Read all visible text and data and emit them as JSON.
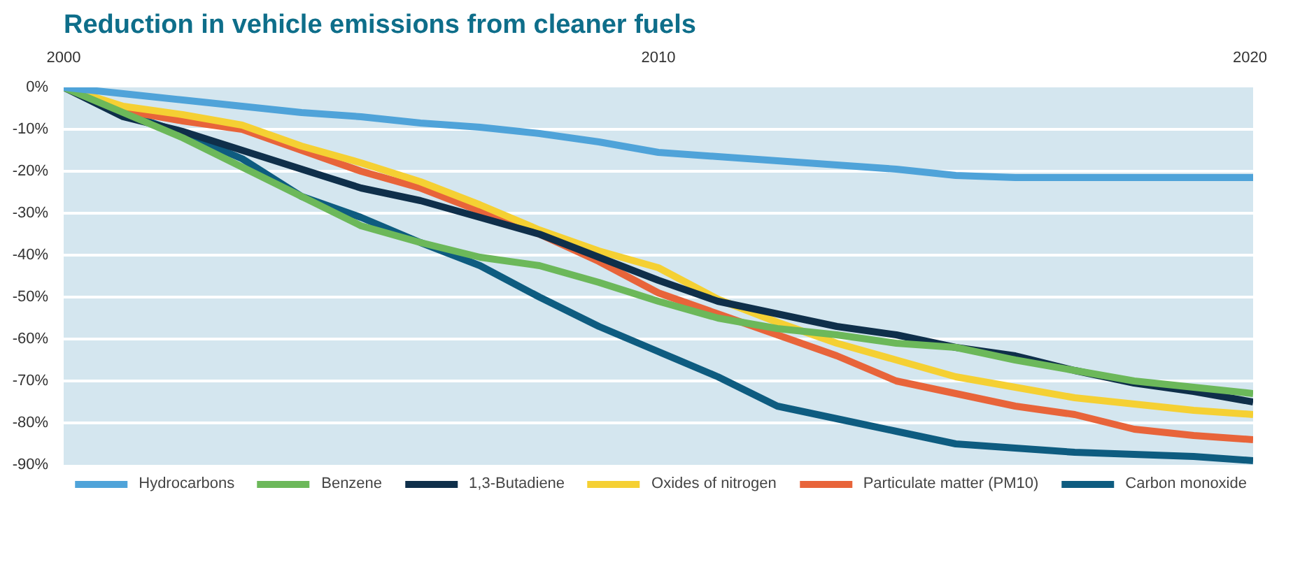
{
  "chart_data": {
    "type": "line",
    "title": "Reduction in vehicle emissions from cleaner fuels",
    "x": [
      2000,
      2001,
      2002,
      2003,
      2004,
      2005,
      2006,
      2007,
      2008,
      2009,
      2010,
      2011,
      2012,
      2013,
      2014,
      2015,
      2016,
      2017,
      2018,
      2019,
      2020
    ],
    "series": [
      {
        "name": "Hydrocarbons",
        "color": "#4fa3d9",
        "values": [
          0,
          -1.5,
          -3,
          -4.5,
          -6,
          -7,
          -8.5,
          -9.5,
          -11,
          -13,
          -15.5,
          -16.5,
          -17.5,
          -18.5,
          -19.5,
          -21,
          -21.5,
          -21.5,
          -21.5,
          -21.5,
          -21.5
        ]
      },
      {
        "name": "Benzene",
        "color": "#6cb85a",
        "values": [
          0,
          -6,
          -12,
          -19,
          -26,
          -33,
          -37,
          -40.5,
          -42.5,
          -46.5,
          -51,
          -55,
          -57.5,
          -59,
          -61,
          -62,
          -65,
          -67.5,
          -70,
          -71.5,
          -73
        ]
      },
      {
        "name": "1,3-Butadiene",
        "color": "#0f2f4a",
        "values": [
          0,
          -7,
          -10.5,
          -15,
          -19.5,
          -24,
          -27,
          -31,
          -35,
          -40.5,
          -46,
          -51,
          -54,
          -57,
          -59,
          -62,
          -64,
          -67.5,
          -70.5,
          -72.5,
          -75
        ]
      },
      {
        "name": "Oxides of nitrogen",
        "color": "#f5d033",
        "values": [
          0,
          -4.5,
          -6.5,
          -9,
          -14,
          -18,
          -22.5,
          -28,
          -34,
          -39,
          -43,
          -50.5,
          -56,
          -61,
          -65,
          -69,
          -71.5,
          -74,
          -75.5,
          -77,
          -78
        ]
      },
      {
        "name": "Particulate matter (PM10)",
        "color": "#e8643a",
        "values": [
          0,
          -5.5,
          -8,
          -10,
          -15,
          -20,
          -24,
          -29.5,
          -35,
          -41.5,
          -49,
          -54,
          -59,
          -64,
          -70,
          -73,
          -76,
          -78,
          -81.5,
          -83,
          -84
        ]
      },
      {
        "name": "Carbon monoxide",
        "color": "#0e5c80",
        "values": [
          0,
          -6,
          -11,
          -17,
          -26,
          -31,
          -37,
          -42.5,
          -50,
          -57,
          -63,
          -69,
          -76,
          -79,
          -82,
          -85,
          -86,
          -87,
          -87.5,
          -88,
          -89
        ]
      }
    ],
    "xlim": [
      2000,
      2020
    ],
    "xticks": [
      2000,
      2010,
      2020
    ],
    "ylim": [
      -90,
      0
    ],
    "yticks": [
      {
        "value": 0,
        "label": "0%"
      },
      {
        "value": -10,
        "label": "-10%"
      },
      {
        "value": -20,
        "label": "-20%"
      },
      {
        "value": -30,
        "label": "-30%"
      },
      {
        "value": -40,
        "label": "-40%"
      },
      {
        "value": -50,
        "label": "-50%"
      },
      {
        "value": -60,
        "label": "-60%"
      },
      {
        "value": -70,
        "label": "-70%"
      },
      {
        "value": -80,
        "label": "-80%"
      },
      {
        "value": -90,
        "label": "-90%"
      }
    ],
    "grid": "y",
    "legend": "bottom",
    "line_style": "solid"
  }
}
